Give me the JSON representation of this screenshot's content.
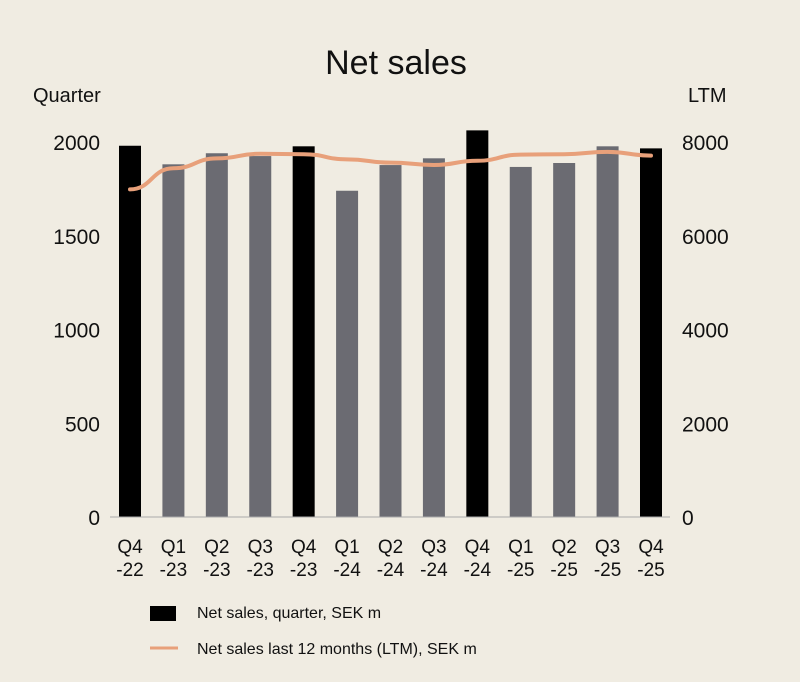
{
  "chart_data": {
    "type": "bar",
    "title": "Net sales",
    "ylabel_left": "Quarter",
    "ylabel_right": "LTM",
    "categories": [
      [
        "Q4",
        "-22"
      ],
      [
        "Q1",
        "-23"
      ],
      [
        "Q2",
        "-23"
      ],
      [
        "Q3",
        "-23"
      ],
      [
        "Q4",
        "-23"
      ],
      [
        "Q1",
        "-24"
      ],
      [
        "Q2",
        "-24"
      ],
      [
        "Q3",
        "-24"
      ],
      [
        "Q4",
        "-24"
      ],
      [
        "Q1",
        "-25"
      ],
      [
        "Q2",
        "-25"
      ],
      [
        "Q3",
        "-25"
      ],
      [
        "Q4",
        "-25"
      ]
    ],
    "ylim_left": [
      0,
      2000
    ],
    "yticks_left": [
      0,
      500,
      1000,
      1500,
      2000
    ],
    "ylim_right": [
      0,
      8000
    ],
    "yticks_right": [
      0,
      2000,
      4000,
      6000,
      8000
    ],
    "grid": false,
    "legend_position": "bottom",
    "series": [
      {
        "name": "Net sales, quarter, SEK m",
        "type": "bar",
        "axis": "left",
        "values": [
          1980,
          1881,
          1940,
          1925,
          1977,
          1740,
          1877,
          1913,
          2062,
          1867,
          1888,
          1977,
          1966
        ],
        "highlight_q4": true
      },
      {
        "name": "Net sales last 12 months (LTM), SEK m",
        "type": "line",
        "axis": "right",
        "values": [
          6990,
          7440,
          7650,
          7750,
          7740,
          7630,
          7560,
          7510,
          7600,
          7730,
          7740,
          7790,
          7710
        ]
      }
    ],
    "colors": {
      "background": "#f0ece2",
      "q4_bar": "#000000",
      "bar": "#6b6b72",
      "line": "#e8a07a"
    }
  }
}
